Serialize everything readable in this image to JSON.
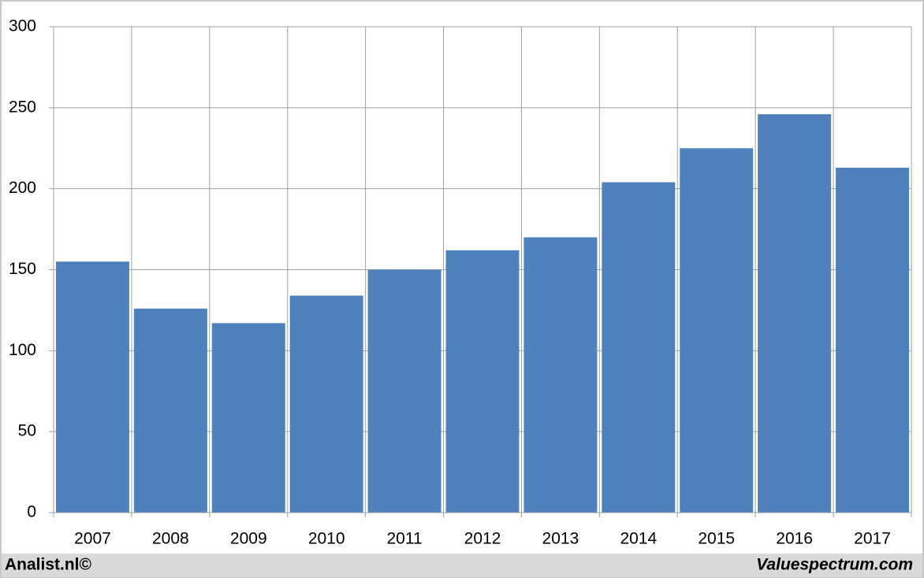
{
  "chart_data": {
    "type": "bar",
    "categories": [
      "2007",
      "2008",
      "2009",
      "2010",
      "2011",
      "2012",
      "2013",
      "2014",
      "2015",
      "2016",
      "2017"
    ],
    "values": [
      155,
      126,
      117,
      134,
      150,
      162,
      170,
      204,
      225,
      246,
      213
    ],
    "color": "#4f81bd",
    "ylim": [
      0,
      300
    ],
    "yticks": [
      0,
      50,
      100,
      150,
      200,
      250,
      300
    ],
    "grid": true,
    "annotations": [
      "Analist.nl©",
      "Valuespectrum.com"
    ]
  }
}
